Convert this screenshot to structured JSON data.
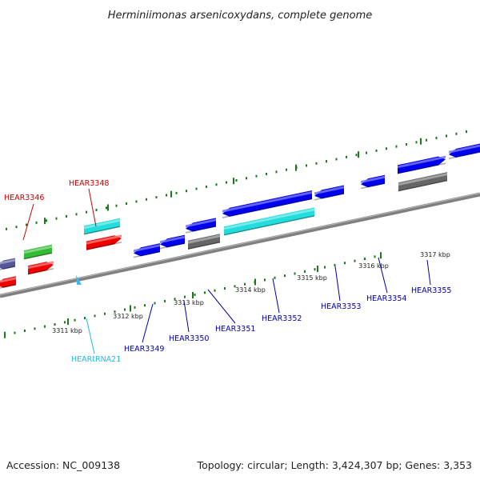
{
  "title": "Herminiimonas arsenicoxydans, complete genome",
  "footer": {
    "accession": "Accession: NC_009138",
    "topology": "Topology: circular; Length: 3,424,307 bp; Genes: 3,353"
  },
  "colors": {
    "backbone": "#808080",
    "tick": "#1a7a1a",
    "forward_label": "#cc0000",
    "reverse_label": "#0000aa",
    "trna_label": "#22bbdd"
  },
  "ticks": [
    "3311 kbp",
    "3312 kbp",
    "3313 kbp",
    "3314 kbp",
    "3315 kbp",
    "3316 kbp",
    "3317 kbp"
  ],
  "genes": [
    {
      "label": "",
      "color": "#555599"
    },
    {
      "label": "",
      "color": "#ee0000"
    },
    {
      "label": "HEAR3346",
      "color": "#33bb33"
    },
    {
      "label": "",
      "color": "#ee0000"
    },
    {
      "label": "HEAR3348",
      "color": "#22dddd"
    },
    {
      "label": "",
      "color": "#ee0000"
    },
    {
      "label": "HEARtRNA21",
      "color": "#33bbee"
    },
    {
      "label": "HEAR3349",
      "color": "#0000ee"
    },
    {
      "label": "HEAR3350",
      "color": "#0000ee"
    },
    {
      "label": "HEAR3351",
      "color": "#0000ee"
    },
    {
      "label": "",
      "color": "#666666"
    },
    {
      "label": "",
      "color": "#0000ee"
    },
    {
      "label": "HEAR3352",
      "color": "#22dddd"
    },
    {
      "label": "HEAR3353",
      "color": "#0000ee"
    },
    {
      "label": "HEAR3354",
      "color": "#0000ee"
    },
    {
      "label": "HEAR3355",
      "color": "#0000ee"
    },
    {
      "label": "",
      "color": "#666666"
    },
    {
      "label": "",
      "color": "#0000ee"
    }
  ]
}
